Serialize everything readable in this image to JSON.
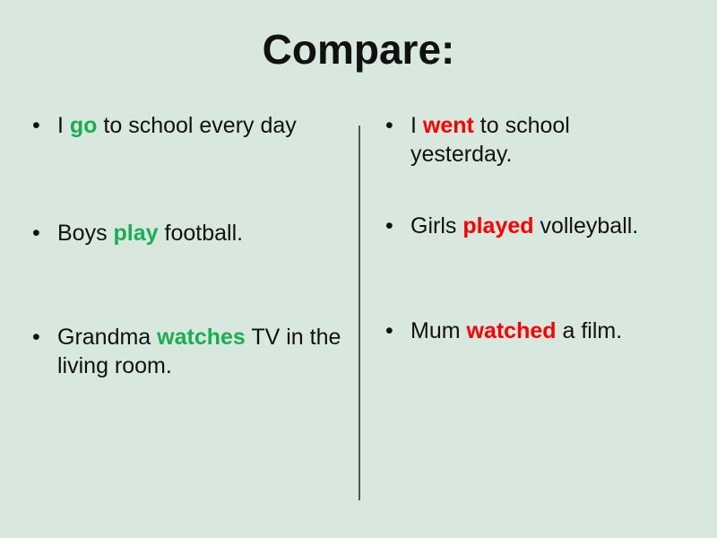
{
  "title": "Compare:",
  "colors": {
    "present": "#1aae50",
    "past": "#ff0000",
    "background": "#d8e8de"
  },
  "left": [
    {
      "pre": "I ",
      "verb": "go",
      "post": " to school every day"
    },
    {
      "pre": "Boys ",
      "verb": "play",
      "post": " football."
    },
    {
      "pre": "Grandma ",
      "verb": "watches",
      "post": " TV in the living room."
    }
  ],
  "right": [
    {
      "pre": "I ",
      "verb": "went",
      "post": " to school yesterday."
    },
    {
      "pre": "Girls ",
      "verb": "played",
      "post": " volleyball."
    },
    {
      "pre": "Mum ",
      "verb": "watched",
      "post": " a film."
    }
  ]
}
